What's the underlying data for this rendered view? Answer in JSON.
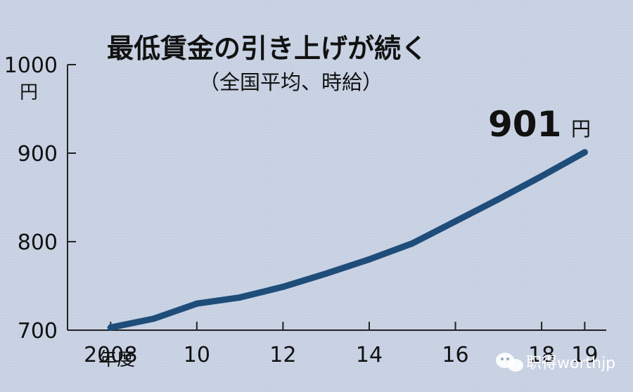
{
  "chart_data": {
    "type": "line",
    "title": "最低賃金の引き上げが続く",
    "subtitle": "（全国平均、時給）",
    "y_unit": "円",
    "x_unit": "年度",
    "x": [
      2008,
      2009,
      2010,
      2011,
      2012,
      2013,
      2014,
      2015,
      2016,
      2017,
      2018,
      2019
    ],
    "series": [
      {
        "values": [
          703,
          713,
          730,
          737,
          749,
          764,
          780,
          798,
          823,
          848,
          874,
          901
        ]
      }
    ],
    "xlim": [
      2007,
      2019.5
    ],
    "ylim": [
      700,
      1000
    ],
    "y_ticks": [
      {
        "value": 700,
        "label": "700"
      },
      {
        "value": 800,
        "label": "800"
      },
      {
        "value": 900,
        "label": "900"
      },
      {
        "value": 1000,
        "label": "1000"
      }
    ],
    "x_ticks": [
      {
        "value": 2008,
        "label": "2008"
      },
      {
        "value": 2010,
        "label": "10"
      },
      {
        "value": 2012,
        "label": "12"
      },
      {
        "value": 2014,
        "label": "14"
      },
      {
        "value": 2016,
        "label": "16"
      },
      {
        "value": 2018,
        "label": "18"
      },
      {
        "value": 2019,
        "label": "19"
      }
    ],
    "callout": {
      "value": "901",
      "unit": "円"
    },
    "line_color": "#1f4d7a",
    "grid": false,
    "legend": "none"
  },
  "watermark": {
    "text": "职得worthjp",
    "icon": "wechat-icon"
  }
}
